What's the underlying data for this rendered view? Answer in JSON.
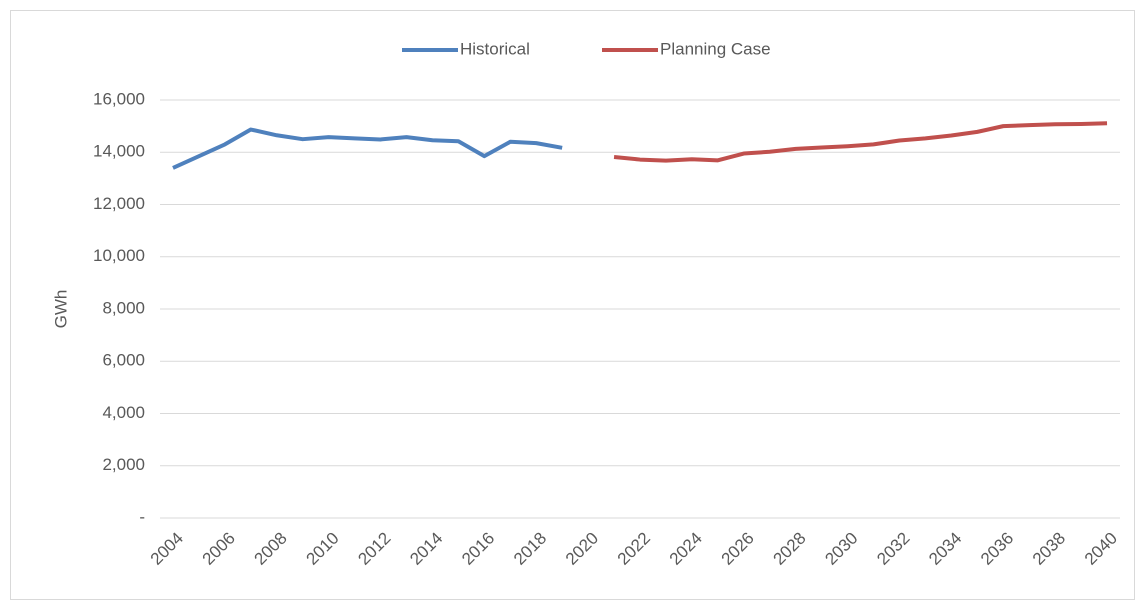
{
  "chart_data": {
    "type": "line",
    "ylabel": "GWh",
    "x": [
      2004,
      2005,
      2006,
      2007,
      2008,
      2009,
      2010,
      2011,
      2012,
      2013,
      2014,
      2015,
      2016,
      2017,
      2018,
      2019,
      2020,
      2021,
      2022,
      2023,
      2024,
      2025,
      2026,
      2027,
      2028,
      2029,
      2030,
      2031,
      2032,
      2033,
      2034,
      2035,
      2036,
      2037,
      2038,
      2039,
      2040
    ],
    "xlim": [
      2003.5,
      2040.5
    ],
    "xticks": [
      2004,
      2006,
      2008,
      2010,
      2012,
      2014,
      2016,
      2018,
      2020,
      2022,
      2024,
      2026,
      2028,
      2030,
      2032,
      2034,
      2036,
      2038,
      2040
    ],
    "ylim": [
      0,
      16000
    ],
    "yticks": [
      {
        "value": 0,
        "label": "-"
      },
      {
        "value": 2000,
        "label": "2,000"
      },
      {
        "value": 4000,
        "label": "4,000"
      },
      {
        "value": 6000,
        "label": "6,000"
      },
      {
        "value": 8000,
        "label": "8,000"
      },
      {
        "value": 10000,
        "label": "10,000"
      },
      {
        "value": 12000,
        "label": "12,000"
      },
      {
        "value": 14000,
        "label": "14,000"
      },
      {
        "value": 16000,
        "label": "16,000"
      }
    ],
    "grid": true,
    "legend": "top",
    "series": [
      {
        "name": "Historical",
        "color": "#4f81bd",
        "values": [
          13400,
          13850,
          14300,
          14870,
          14650,
          14500,
          14580,
          14530,
          14490,
          14580,
          14460,
          14420,
          13850,
          14400,
          14350,
          14170,
          null,
          null,
          null,
          null,
          null,
          null,
          null,
          null,
          null,
          null,
          null,
          null,
          null,
          null,
          null,
          null,
          null,
          null,
          null,
          null,
          null
        ]
      },
      {
        "name": "Planning Case",
        "color": "#c0504d",
        "values": [
          null,
          null,
          null,
          null,
          null,
          null,
          null,
          null,
          null,
          null,
          null,
          null,
          null,
          null,
          null,
          null,
          null,
          13820,
          13720,
          13680,
          13730,
          13690,
          13950,
          14020,
          14130,
          14180,
          14230,
          14300,
          14450,
          14530,
          14640,
          14780,
          15000,
          15040,
          15070,
          15080,
          15110
        ]
      }
    ]
  }
}
